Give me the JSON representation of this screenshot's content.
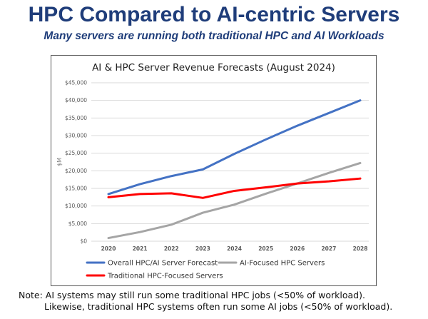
{
  "slide": {
    "title": "HPC Compared to AI-centric Servers",
    "subtitle": "Many servers are running both traditional HPC and AI Workloads",
    "note_line1": "Note: AI systems may still run some traditional HPC jobs (<50% of workload).",
    "note_line2": "Likewise, traditional HPC systems often run some AI jobs (<50% of workload)."
  },
  "chart_data": {
    "type": "line",
    "title": "AI & HPC Server Revenue Forecasts (August 2024)",
    "xlabel": "",
    "ylabel": "$M",
    "categories": [
      "2020",
      "2021",
      "2022",
      "2023",
      "2024",
      "2025",
      "2026",
      "2027",
      "2028"
    ],
    "ylim": [
      0,
      45000
    ],
    "yticks": [
      0,
      5000,
      10000,
      15000,
      20000,
      25000,
      30000,
      35000,
      40000,
      45000
    ],
    "ytick_labels": [
      "$0",
      "$5,000",
      "$10,000",
      "$15,000",
      "$20,000",
      "$25,000",
      "$30,000",
      "$35,000",
      "$40,000",
      "$45,000"
    ],
    "grid": "horizontal",
    "legend_position": "bottom",
    "series": [
      {
        "name": "Overall HPC/AI Server Forecast",
        "color": "#4472c4",
        "values": [
          13400,
          16200,
          18500,
          20400,
          24800,
          28900,
          32800,
          36400,
          40000
        ]
      },
      {
        "name": "AI-Focused HPC Servers",
        "color": "#a5a5a5",
        "values": [
          900,
          2600,
          4700,
          8100,
          10400,
          13500,
          16400,
          19400,
          22200
        ]
      },
      {
        "name": "Traditional HPC-Focused Servers",
        "color": "#ff0000",
        "values": [
          12500,
          13400,
          13600,
          12300,
          14300,
          15300,
          16400,
          17000,
          17800
        ]
      }
    ]
  }
}
